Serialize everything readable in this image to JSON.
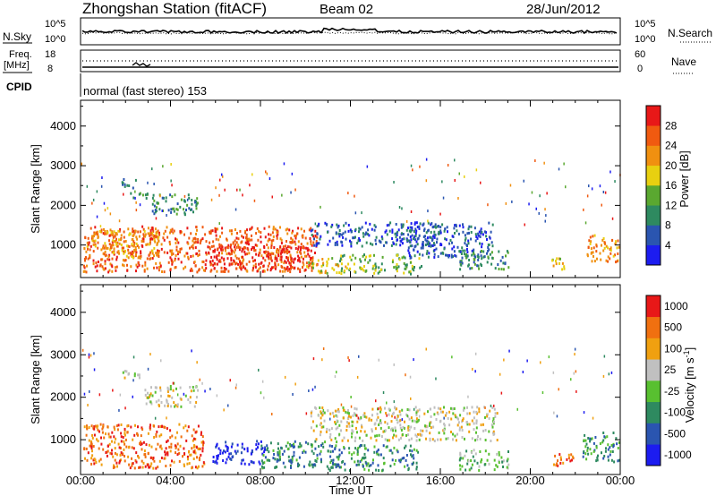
{
  "header": {
    "title": "Zhongshan Station (fitACF)",
    "beam": "Beam 02",
    "date": "28/Jun/2012"
  },
  "top_panels": {
    "nsky_label": "N.Sky",
    "nsky_ticks": [
      "10^5",
      "10^0"
    ],
    "nsearch_label": "N.Search",
    "nsearch_ticks": [
      "10^5",
      "10^0"
    ],
    "freq_label": "Freq.",
    "freq_unit": "[MHz]",
    "freq_ticks": [
      "18",
      "8"
    ],
    "nave_label": "Nave",
    "nave_ticks": [
      "60",
      "0"
    ],
    "cpid_label": "CPID",
    "cpid_text": "normal (fast stereo) 153"
  },
  "chart_data": [
    {
      "type": "heatmap",
      "name": "power",
      "ylabel": "Slant Range [km]",
      "xlabel": "Time UT",
      "x_ticks": [
        "00:00",
        "04:00",
        "08:00",
        "12:00",
        "16:00",
        "20:00",
        "00:00"
      ],
      "xlim_hours": [
        0,
        24
      ],
      "y_ticks": [
        1000,
        2000,
        3000,
        4000
      ],
      "ylim_km": [
        180,
        4650
      ],
      "colorbar": {
        "label": "Power [dB]",
        "ticks": [
          "4",
          "8",
          "12",
          "16",
          "20",
          "24",
          "28"
        ],
        "range": [
          0,
          30
        ],
        "colors": [
          "#1c1cf0",
          "#2a55b0",
          "#2e8a60",
          "#5aa830",
          "#e8d010",
          "#f09010",
          "#f05a10",
          "#e81818"
        ]
      },
      "blobs": [
        {
          "t0": 0.1,
          "t1": 10.5,
          "r0": 350,
          "r1": 1500,
          "level": 6
        },
        {
          "t0": 5.5,
          "t1": 10.3,
          "r0": 400,
          "r1": 1000,
          "level": 7
        },
        {
          "t0": 0.2,
          "t1": 3.5,
          "r0": 700,
          "r1": 1400,
          "level": 5
        },
        {
          "t0": 10.0,
          "t1": 11.8,
          "r0": 300,
          "r1": 700,
          "level": 4
        },
        {
          "t0": 11.5,
          "t1": 13.5,
          "r0": 300,
          "r1": 800,
          "level": 3
        },
        {
          "t0": 13.8,
          "t1": 15.2,
          "r0": 300,
          "r1": 800,
          "level": 3
        },
        {
          "t0": 1.8,
          "t1": 2.5,
          "r0": 2450,
          "r1": 2700,
          "level": 1
        },
        {
          "t0": 2.2,
          "t1": 3.0,
          "r0": 2200,
          "r1": 2400,
          "level": 2
        },
        {
          "t0": 3.0,
          "t1": 5.2,
          "r0": 1800,
          "r1": 2300,
          "level": 2
        },
        {
          "t0": 10.2,
          "t1": 16.0,
          "r0": 1000,
          "r1": 1600,
          "level": 1
        },
        {
          "t0": 14.5,
          "t1": 18.3,
          "r0": 700,
          "r1": 1600,
          "level": 1
        },
        {
          "t0": 16.8,
          "t1": 19.0,
          "r0": 400,
          "r1": 900,
          "level": 2
        },
        {
          "t0": 20.8,
          "t1": 21.6,
          "r0": 400,
          "r1": 700,
          "level": 4
        },
        {
          "t0": 22.5,
          "t1": 24.0,
          "r0": 600,
          "r1": 1300,
          "level": 5
        }
      ]
    },
    {
      "type": "heatmap",
      "name": "velocity",
      "ylabel": "Slant Range [km]",
      "xlabel": "Time UT",
      "x_ticks": [
        "00:00",
        "04:00",
        "08:00",
        "12:00",
        "16:00",
        "20:00",
        "00:00"
      ],
      "xlim_hours": [
        0,
        24
      ],
      "y_ticks": [
        1000,
        2000,
        3000,
        4000
      ],
      "ylim_km": [
        180,
        4650
      ],
      "colorbar": {
        "label": "Velocity [m s^-1]",
        "ticks": [
          "1000",
          "500",
          "100",
          "25",
          "-25",
          "-100",
          "-500",
          "-1000"
        ],
        "colors": [
          "#1c1cf0",
          "#2a55b0",
          "#2e8a60",
          "#58c030",
          "#c0c0c0",
          "#f0a010",
          "#f07010",
          "#e81818"
        ]
      },
      "blobs": [
        {
          "t0": 0.1,
          "t1": 5.5,
          "r0": 350,
          "r1": 1400,
          "level": 6
        },
        {
          "t0": 5.8,
          "t1": 8.2,
          "r0": 450,
          "r1": 1000,
          "level": 0
        },
        {
          "t0": 8.0,
          "t1": 11.5,
          "r0": 350,
          "r1": 1000,
          "level": 2
        },
        {
          "t0": 2.8,
          "t1": 5.2,
          "r0": 1800,
          "r1": 2300,
          "level": 4
        },
        {
          "t0": 1.8,
          "t1": 2.6,
          "r0": 2450,
          "r1": 2700,
          "level": 4
        },
        {
          "t0": 10.2,
          "t1": 18.5,
          "r0": 1000,
          "r1": 1800,
          "level": 4
        },
        {
          "t0": 11.0,
          "t1": 15.0,
          "r0": 300,
          "r1": 900,
          "level": 2
        },
        {
          "t0": 16.8,
          "t1": 19.0,
          "r0": 300,
          "r1": 800,
          "level": 3
        },
        {
          "t0": 21.0,
          "t1": 22.0,
          "r0": 350,
          "r1": 700,
          "level": 6
        },
        {
          "t0": 22.3,
          "t1": 24.0,
          "r0": 500,
          "r1": 1200,
          "level": 2
        }
      ]
    }
  ]
}
